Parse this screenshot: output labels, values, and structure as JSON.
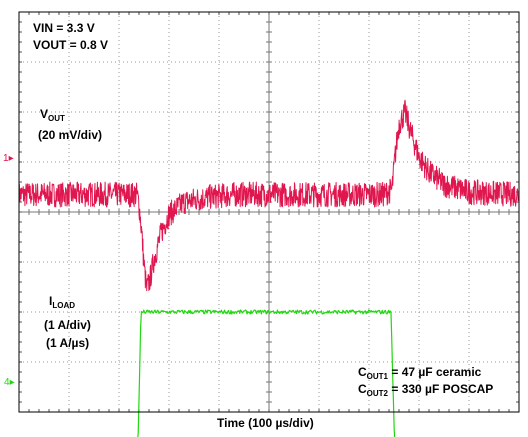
{
  "conditions": {
    "vin": "VIN = 3.3 V",
    "vout": "VOUT = 0.8 V"
  },
  "ch1": {
    "marker": "1",
    "label_main": "V",
    "label_sub": "OUT",
    "scale": "(20 mV/div)",
    "color": "#e0164f"
  },
  "ch4": {
    "marker": "4",
    "label_main": "I",
    "label_sub": "LOAD",
    "scale": "(1 A/div)",
    "slew": "(1 A/µs)",
    "color": "#22d611"
  },
  "caps": {
    "cout1_main": "C",
    "cout1_sub": "OUT1",
    "cout1_rest": " = 47 µF ceramic",
    "cout2_main": "C",
    "cout2_sub": "OUT2",
    "cout2_rest": " = 330 µF POSCAP"
  },
  "xlabel": "Time (100 µs/div)",
  "chart_data": {
    "type": "line",
    "grid": {
      "x_divisions": 10,
      "y_divisions": 8
    },
    "xlabel": "Time (100 µs/div)",
    "x_unit": "µs",
    "xlim": [
      0,
      1000
    ],
    "series": [
      {
        "name": "VOUT",
        "channel": 1,
        "scale": "20 mV/div",
        "color": "#e0164f",
        "unit": "mV (deviation)",
        "noise_pp": 10,
        "x": [
          0,
          236,
          240,
          245,
          250,
          255,
          262,
          270,
          285,
          300,
          330,
          380,
          430,
          480,
          560,
          730,
          746,
          752,
          760,
          772,
          785,
          800,
          820,
          850,
          900,
          1000
        ],
        "y": [
          0,
          0,
          -4,
          -14,
          -28,
          -38,
          -34,
          -26,
          -15,
          -8,
          -3,
          -1,
          0,
          0,
          0,
          0,
          2,
          15,
          28,
          33,
          24,
          15,
          9,
          4,
          1,
          0
        ]
      },
      {
        "name": "ILOAD",
        "channel": 4,
        "scale": "1 A/div",
        "color": "#22d611",
        "unit": "A (relative)",
        "noise_pp": 0.08,
        "x": [
          0,
          238,
          244,
          744,
          751,
          1000
        ],
        "y": [
          0,
          0,
          2.6,
          2.6,
          0,
          0
        ]
      }
    ]
  }
}
